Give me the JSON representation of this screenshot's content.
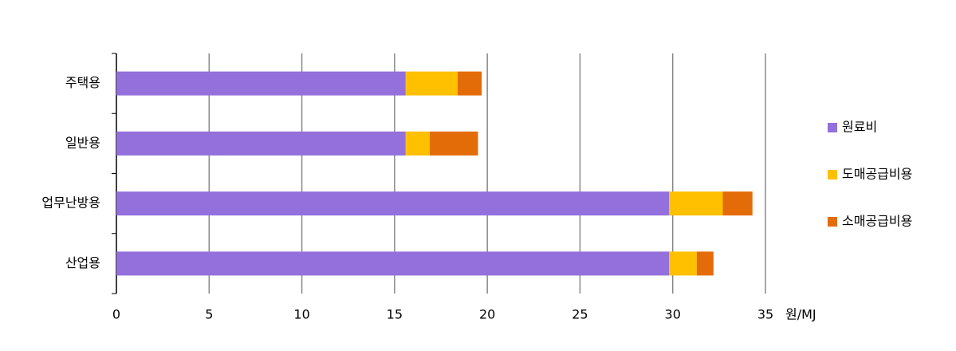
{
  "chart_data": {
    "type": "stacked-bar-horizontal",
    "x_label": "원/MJ",
    "categories": [
      "주택용",
      "일반용",
      "업무난방용",
      "산업용"
    ],
    "series": [
      {
        "name": "원료비",
        "color": "#9370db",
        "values": [
          15.6,
          15.6,
          29.8,
          29.8
        ]
      },
      {
        "name": "도매공급비용",
        "color": "#ffc000",
        "values": [
          2.8,
          1.3,
          2.9,
          1.5
        ]
      },
      {
        "name": "소매공급비용",
        "color": "#e36c09",
        "values": [
          1.3,
          2.6,
          1.6,
          0.9
        ]
      }
    ],
    "xlim": [
      0,
      35
    ],
    "xticks": [
      0,
      5,
      10,
      15,
      20,
      25,
      30,
      35
    ],
    "grid": true,
    "legend": "right"
  }
}
